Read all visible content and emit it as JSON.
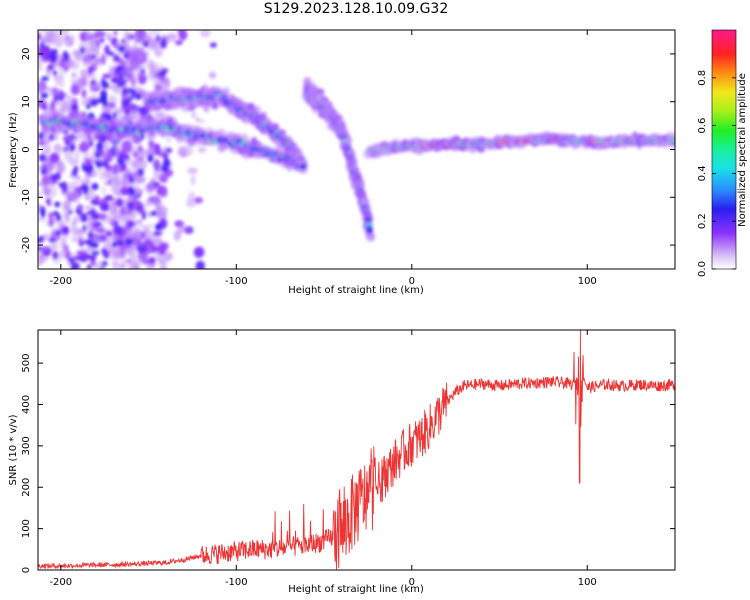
{
  "title": "S129.2023.128.10.09.G32",
  "chart_data": [
    {
      "type": "heatmap",
      "xlabel": "Height of straight line (km)",
      "ylabel": "Frequency (Hz)",
      "xlim": [
        -213,
        150
      ],
      "ylim": [
        -25,
        25
      ],
      "xticks": [
        -200,
        -100,
        0,
        100
      ],
      "yticks": [
        -20,
        -10,
        0,
        10,
        20
      ],
      "grid": false,
      "colorbar": {
        "label": "Normalized spectral amplitude",
        "ticks": [
          0.0,
          0.2,
          0.4,
          0.6,
          0.8
        ],
        "range": [
          0,
          1
        ],
        "colormap": "rainbow (white-violet-blue-cyan-green-yellow-red-magenta)"
      },
      "features": [
        {
          "name": "upper branch",
          "x": [
            -150,
            -135,
            -120,
            -110,
            -100,
            -90,
            -80,
            -70,
            -62
          ],
          "y": [
            10,
            10.5,
            11,
            11,
            9,
            7,
            4,
            1,
            -3
          ]
        },
        {
          "name": "lower branch",
          "x": [
            -210,
            -195,
            -180,
            -165,
            -150,
            -140,
            -125,
            -110,
            -95,
            -80,
            -70,
            -62
          ],
          "y": [
            6,
            5.5,
            5,
            4,
            4.5,
            5,
            3,
            2,
            1,
            -1,
            -2,
            -4
          ]
        },
        {
          "name": "steep descending trace",
          "x": [
            -60,
            -50,
            -40,
            -35,
            -30,
            -26,
            -24
          ],
          "y": [
            12.5,
            9,
            4,
            -2,
            -8,
            -13,
            -17
          ]
        },
        {
          "name": "stable carrier trace",
          "x": [
            -25,
            -10,
            0,
            20,
            50,
            80,
            100,
            120,
            150
          ],
          "y": [
            -0.5,
            0.5,
            0.8,
            1.0,
            1.4,
            2.2,
            1.6,
            1.7,
            2.0
          ]
        }
      ]
    },
    {
      "type": "line",
      "xlabel": "Height of straight line (km)",
      "ylabel": "SNR (10 * v/v)",
      "xlim": [
        -213,
        150
      ],
      "ylim": [
        0,
        580
      ],
      "xticks": [
        -200,
        -100,
        0,
        100
      ],
      "yticks": [
        0,
        100,
        200,
        300,
        400,
        500
      ],
      "grid": false,
      "series": [
        {
          "color": "#ee3333",
          "x": [
            -213,
            -200,
            -180,
            -160,
            -140,
            -130,
            -120,
            -110,
            -100,
            -90,
            -80,
            -70,
            -60,
            -50,
            -40,
            -35,
            -30,
            -25,
            -20,
            -15,
            -10,
            -5,
            0,
            5,
            10,
            15,
            20,
            25,
            30,
            40,
            50,
            60,
            70,
            80,
            90,
            95,
            96,
            97,
            100,
            110,
            120,
            130,
            140,
            150
          ],
          "values": [
            10,
            10,
            12,
            14,
            18,
            25,
            35,
            40,
            45,
            50,
            50,
            55,
            60,
            70,
            90,
            130,
            160,
            180,
            200,
            230,
            260,
            285,
            305,
            320,
            345,
            375,
            405,
            430,
            445,
            450,
            445,
            450,
            452,
            455,
            450,
            440,
            300,
            480,
            440,
            448,
            445,
            448,
            445,
            448
          ]
        }
      ]
    }
  ]
}
